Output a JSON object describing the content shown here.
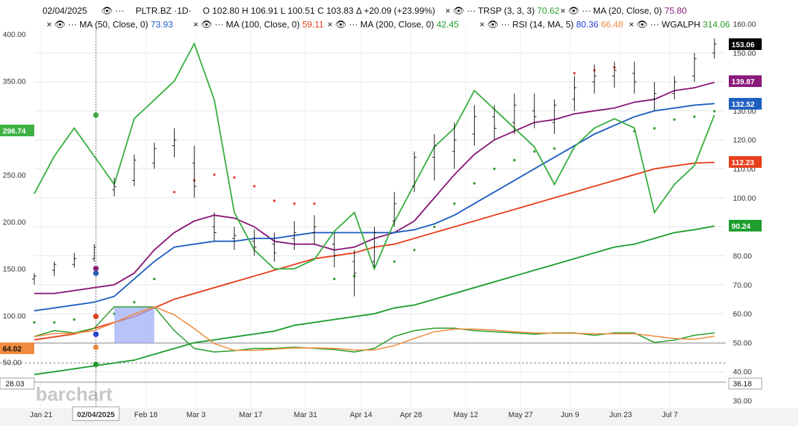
{
  "header": {
    "date": "02/04/2025",
    "symbol": "PLTR.BZ",
    "interval": "1D",
    "open_label": "O",
    "open": "102.80",
    "high_label": "H",
    "high": "106.91",
    "low_label": "L",
    "low": "100.51",
    "close_label": "C",
    "close": "103.83",
    "change": "Δ +20.09 (+23.99%)"
  },
  "indicators": [
    {
      "name": "TRSP (3, 3, 3)",
      "value": "70.62",
      "color": "#2ca02c"
    },
    {
      "name": "MA (20, Close, 0)",
      "value": "75.80",
      "color": "#8b1a7a"
    },
    {
      "name": "MA (50, Close, 0)",
      "value": "73.93",
      "color": "#1f5fbf"
    },
    {
      "name": "MA (100, Close, 0)",
      "value": "59.11",
      "color": "#e8401c"
    },
    {
      "name": "MA (200, Close, 0)",
      "value": "42.45",
      "color": "#1f9e2f"
    },
    {
      "name": "RSI (14, MA, 5)",
      "value": "80.36",
      "value2": "66.48",
      "color": "#1f3fd8",
      "color2": "#f08a3c"
    },
    {
      "name": "WGALPH",
      "value": "314.06",
      "color": "#2ca02c"
    }
  ],
  "left_axis": {
    "ticks": [
      "400.00",
      "350.00",
      "300.00",
      "250.00",
      "200.00",
      "150.00",
      "100.00",
      "50.00"
    ],
    "marker": "296.74",
    "rsi_marker": "64.02",
    "rsi_low_marker": "28.03"
  },
  "right_axis": {
    "ticks": [
      "160.00",
      "150.00",
      "140.00",
      "130.00",
      "120.00",
      "110.00",
      "100.00",
      "90.00",
      "80.00",
      "70.00",
      "60.00",
      "50.00",
      "40.00",
      "30.00"
    ],
    "badges": {
      "price": "153.06",
      "ma20": "139.87",
      "ma50": "132.52",
      "ma100": "112.23",
      "ma200": "90.24",
      "rsi_low": "36.18"
    }
  },
  "x_axis": {
    "ticks": [
      "Jan 21",
      "02/04/2025",
      "Feb 18",
      "Mar 3",
      "Mar 17",
      "Mar 31",
      "Apr 14",
      "Apr 28",
      "May 12",
      "May 27",
      "Jun 9",
      "Jun 23",
      "Jul 7"
    ]
  },
  "watermark": "barchart",
  "colors": {
    "ma20": "#8b1a7a",
    "ma50": "#1f5fbf",
    "ma100": "#e8401c",
    "ma200": "#1f9e2f",
    "wgalph": "#3cb043",
    "sar_red": "#e8403c",
    "sar_green": "#2ca02c",
    "rsi": "#2a9d2a",
    "rsi_ma": "#f08a3c",
    "price": "#111111"
  },
  "chart_data": {
    "type": "line",
    "x_start": "2025-01-21",
    "x_end": "2025-07-17",
    "price_ylim": [
      30,
      160
    ],
    "wgalph_ylim": [
      28,
      400
    ],
    "series": [
      {
        "name": "MA (20, Close, 0)",
        "values": [
          67,
          67,
          68,
          69,
          70,
          74,
          82,
          88,
          92,
          94,
          93,
          90,
          85,
          84,
          84,
          82,
          83,
          86,
          88,
          92,
          100,
          108,
          115,
          120,
          123,
          126,
          127,
          129,
          130,
          131,
          133,
          134,
          137,
          138,
          139.87
        ]
      },
      {
        "name": "MA (50, Close, 0)",
        "values": [
          61,
          62,
          63,
          64,
          66,
          72,
          78,
          83,
          84,
          85,
          85,
          86,
          86,
          87,
          88,
          88,
          88,
          88,
          88,
          89,
          91,
          94,
          98,
          102,
          106,
          110,
          114,
          118,
          122,
          125,
          128,
          130,
          131,
          132,
          132.52
        ]
      },
      {
        "name": "MA (100, Close, 0)",
        "values": [
          51,
          52,
          53,
          55,
          57,
          59,
          62,
          65,
          67,
          69,
          71,
          73,
          75,
          77,
          79,
          80,
          81,
          83,
          84,
          86,
          88,
          90,
          92,
          94,
          96,
          98,
          100,
          102,
          104,
          106,
          108,
          110,
          111,
          112,
          112.23
        ]
      },
      {
        "name": "MA (200, Close, 0)",
        "values": [
          39,
          40,
          41,
          42,
          43,
          44,
          46,
          48,
          50,
          51,
          52,
          53,
          54,
          56,
          57,
          58,
          59,
          60,
          62,
          63,
          65,
          67,
          69,
          71,
          73,
          75,
          77,
          79,
          81,
          83,
          84,
          86,
          88,
          89,
          90.24
        ]
      },
      {
        "name": "WGALPH",
        "values": [
          230,
          270,
          300,
          270,
          240,
          310,
          330,
          350,
          390,
          330,
          210,
          170,
          150,
          150,
          160,
          190,
          210,
          150,
          200,
          240,
          280,
          300,
          340,
          320,
          300,
          280,
          240,
          280,
          300,
          310,
          300,
          210,
          240,
          260,
          314.06
        ]
      },
      {
        "name": "RSI (14, MA, 5)",
        "values": [
          55,
          60,
          58,
          62,
          80,
          80,
          80,
          60,
          45,
          42,
          43,
          45,
          45,
          46,
          45,
          44,
          42,
          45,
          55,
          60,
          62,
          62,
          60,
          59,
          58,
          57,
          58,
          58,
          56,
          58,
          58,
          50,
          52,
          56,
          58
        ]
      }
    ],
    "price_bars": [
      {
        "o": 72,
        "h": 74,
        "l": 70,
        "c": 73
      },
      {
        "o": 75,
        "h": 78,
        "l": 73,
        "c": 77
      },
      {
        "o": 77,
        "h": 81,
        "l": 76,
        "c": 79
      },
      {
        "o": 79,
        "h": 84,
        "l": 78,
        "c": 83
      },
      {
        "o": 102.8,
        "h": 106.91,
        "l": 100.51,
        "c": 103.83
      },
      {
        "o": 106,
        "h": 115,
        "l": 104,
        "c": 113
      },
      {
        "o": 112,
        "h": 119,
        "l": 110,
        "c": 117
      },
      {
        "o": 118,
        "h": 124,
        "l": 114,
        "c": 120
      },
      {
        "o": 112,
        "h": 118,
        "l": 100,
        "c": 104
      },
      {
        "o": 90,
        "h": 95,
        "l": 85,
        "c": 88
      },
      {
        "o": 86,
        "h": 90,
        "l": 82,
        "c": 87
      },
      {
        "o": 85,
        "h": 89,
        "l": 80,
        "c": 83
      },
      {
        "o": 84,
        "h": 88,
        "l": 78,
        "c": 81
      },
      {
        "o": 86,
        "h": 92,
        "l": 82,
        "c": 88
      },
      {
        "o": 88,
        "h": 94,
        "l": 84,
        "c": 90
      },
      {
        "o": 84,
        "h": 88,
        "l": 76,
        "c": 80
      },
      {
        "o": 78,
        "h": 82,
        "l": 66,
        "c": 74
      },
      {
        "o": 78,
        "h": 90,
        "l": 76,
        "c": 88
      },
      {
        "o": 92,
        "h": 102,
        "l": 90,
        "c": 98
      },
      {
        "o": 104,
        "h": 116,
        "l": 102,
        "c": 114
      },
      {
        "o": 114,
        "h": 122,
        "l": 106,
        "c": 118
      },
      {
        "o": 116,
        "h": 126,
        "l": 110,
        "c": 120
      },
      {
        "o": 122,
        "h": 132,
        "l": 118,
        "c": 128
      },
      {
        "o": 128,
        "h": 132,
        "l": 120,
        "c": 124
      },
      {
        "o": 126,
        "h": 136,
        "l": 122,
        "c": 132
      },
      {
        "o": 130,
        "h": 136,
        "l": 124,
        "c": 128
      },
      {
        "o": 126,
        "h": 134,
        "l": 122,
        "c": 132
      },
      {
        "o": 134,
        "h": 142,
        "l": 130,
        "c": 138
      },
      {
        "o": 140,
        "h": 146,
        "l": 136,
        "c": 142
      },
      {
        "o": 142,
        "h": 147,
        "l": 138,
        "c": 144
      },
      {
        "o": 143,
        "h": 147,
        "l": 136,
        "c": 140
      },
      {
        "o": 134,
        "h": 140,
        "l": 130,
        "c": 136
      },
      {
        "o": 136,
        "h": 142,
        "l": 134,
        "c": 140
      },
      {
        "o": 142,
        "h": 150,
        "l": 140,
        "c": 148
      },
      {
        "o": 150,
        "h": 155,
        "l": 148,
        "c": 153.06
      }
    ]
  }
}
